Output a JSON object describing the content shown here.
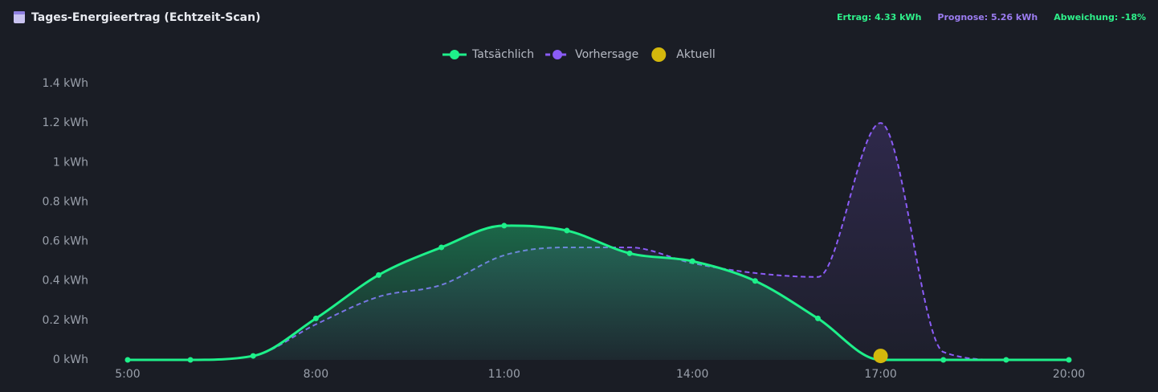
{
  "header": {
    "title": "Tages-Energieertrag (Echtzeit-Scan)",
    "stats": [
      {
        "text": "Ertrag: 4.33 kWh",
        "color": "#2ef08a"
      },
      {
        "text": "Prognose: 5.26 kWh",
        "color": "#9b7cf0"
      },
      {
        "text": "Abweichung: -18%",
        "color": "#2ef08a"
      }
    ]
  },
  "chart_data": {
    "type": "line",
    "categories": [
      "5:00",
      null,
      null,
      "8:00",
      null,
      null,
      "11:00",
      null,
      null,
      "14:00",
      null,
      null,
      "17:00",
      null,
      null,
      "20:00"
    ],
    "series": [
      {
        "name": "Tatsächlich",
        "color": "#1ef08a",
        "values": [
          0,
          0,
          0.02,
          0.21,
          0.43,
          0.57,
          0.68,
          0.655,
          0.54,
          0.5,
          0.4,
          0.21,
          0,
          0,
          0,
          0
        ]
      },
      {
        "name": "Vorhersage",
        "color": "#8b5cf6",
        "values": [
          0,
          0,
          0.02,
          0.18,
          0.32,
          0.38,
          0.53,
          0.57,
          0.57,
          0.49,
          0.44,
          0.42,
          1.2,
          0.04,
          0,
          0
        ]
      },
      {
        "name": "Aktuell",
        "color": "#d4b80c",
        "values": [
          null,
          null,
          null,
          null,
          null,
          null,
          null,
          null,
          null,
          null,
          null,
          null,
          0.02,
          null,
          null,
          null
        ]
      }
    ],
    "ylim": [
      0,
      1.4
    ],
    "yticks": [
      {
        "value": 0,
        "label": "0 kWh"
      },
      {
        "value": 0.2,
        "label": "0.2 kWh"
      },
      {
        "value": 0.4,
        "label": "0.4 kWh"
      },
      {
        "value": 0.6,
        "label": "0.6 kWh"
      },
      {
        "value": 0.8,
        "label": "0.8 kWh"
      },
      {
        "value": 1,
        "label": "1 kWh"
      },
      {
        "value": 1.2,
        "label": "1.2 kWh"
      },
      {
        "value": 1.4,
        "label": "1.4 kWh"
      }
    ]
  }
}
